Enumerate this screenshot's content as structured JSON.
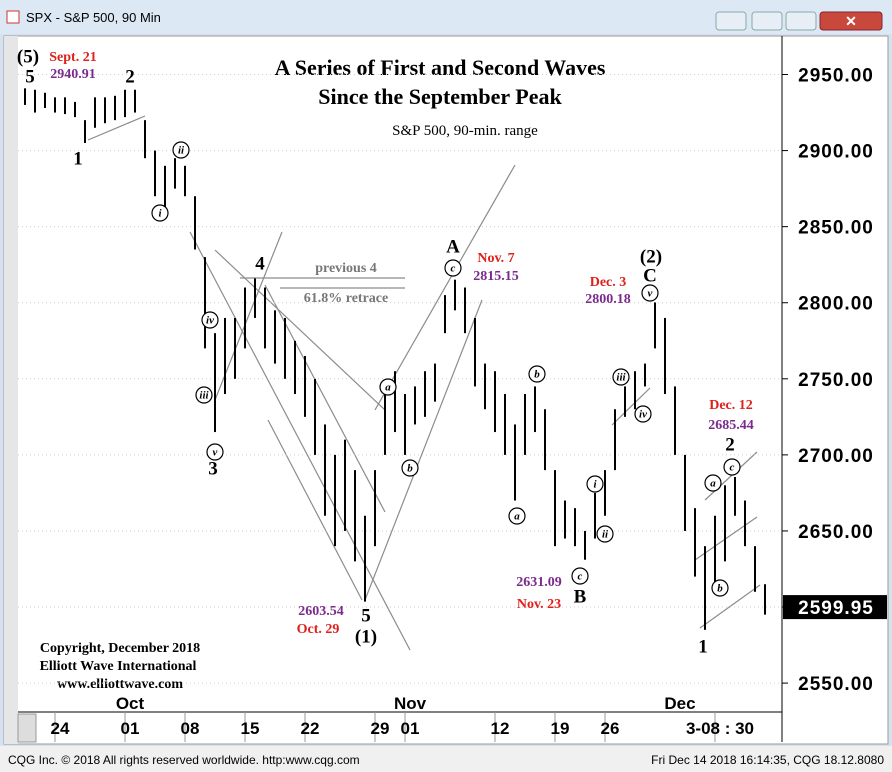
{
  "window": {
    "title": "SPX - S&P 500, 90 Min"
  },
  "status_bar": {
    "left": "CQG Inc. © 2018 All rights reserved worldwide. http:www.cqg.com",
    "right": "Fri Dec 14 2018 16:14:35, CQG 18.12.8080"
  },
  "chart_data": {
    "type": "range_bar",
    "title": [
      "A Series of First and Second Waves",
      "Since the September Peak"
    ],
    "subtitle": "S&P 500, 90-min. range",
    "categories": [
      null,
      null,
      null,
      "24",
      null,
      null,
      null,
      null,
      null,
      null,
      "01",
      null,
      null,
      null,
      null,
      null,
      "08",
      null,
      null,
      null,
      null,
      null,
      "15",
      null,
      null,
      null,
      null,
      null,
      "22",
      null,
      null,
      null,
      null,
      null,
      null,
      "29",
      null,
      null,
      "01",
      null,
      null,
      null,
      null,
      null,
      null,
      null,
      null,
      "12",
      null,
      null,
      null,
      null,
      null,
      "19",
      null,
      null,
      null,
      null,
      "26",
      null,
      null,
      null,
      null,
      null,
      null,
      null,
      null,
      null,
      null,
      "3-08 : 30",
      null,
      null,
      null,
      null,
      null
    ],
    "category_groups": [
      null,
      null,
      null,
      null,
      null,
      null,
      null,
      null,
      null,
      null,
      "Oct",
      null,
      null,
      null,
      null,
      null,
      null,
      null,
      null,
      null,
      null,
      null,
      null,
      null,
      null,
      null,
      null,
      null,
      null,
      null,
      null,
      null,
      null,
      null,
      null,
      null,
      null,
      null,
      "Nov",
      null,
      null,
      null,
      null,
      null,
      null,
      null,
      null,
      null,
      null,
      null,
      null,
      null,
      null,
      null,
      null,
      null,
      null,
      null,
      null,
      null,
      null,
      null,
      null,
      null,
      null,
      "Dec",
      null,
      null,
      null,
      null,
      null,
      null,
      null,
      null,
      null
    ],
    "low": [
      2930,
      2925,
      2928,
      2925,
      2924,
      2922,
      2905,
      2915,
      2918,
      2920,
      2922,
      2925,
      2895,
      2870,
      2860,
      2875,
      2870,
      2835,
      2770,
      2715,
      2740,
      2750,
      2770,
      2790,
      2770,
      2760,
      2750,
      2740,
      2725,
      2700,
      2660,
      2640,
      2650,
      2630,
      2603.54,
      2640,
      2700,
      2715,
      2700,
      2720,
      2725,
      2735,
      2780,
      2795,
      2780,
      2745,
      2730,
      2715,
      2700,
      2670,
      2700,
      2715,
      2690,
      2640,
      2645,
      2640,
      2631.09,
      2645,
      2660,
      2690,
      2725,
      2730,
      2745,
      2770,
      2740,
      2700,
      2650,
      2620,
      2585,
      2610,
      2630,
      2660,
      2640,
      2610,
      2595
    ],
    "high": [
      2940.91,
      2940,
      2938,
      2935,
      2935,
      2932,
      2920,
      2935,
      2935,
      2936,
      2940,
      2940,
      2920,
      2900,
      2890,
      2895,
      2890,
      2870,
      2830,
      2780,
      2790,
      2790,
      2810,
      2816,
      2810,
      2795,
      2790,
      2775,
      2765,
      2750,
      2720,
      2700,
      2710,
      2690,
      2660,
      2690,
      2745,
      2755,
      2740,
      2745,
      2755,
      2760,
      2805,
      2815.15,
      2810,
      2790,
      2760,
      2755,
      2740,
      2720,
      2740,
      2745,
      2730,
      2690,
      2670,
      2665,
      2650,
      2675,
      2690,
      2730,
      2745,
      2755,
      2760,
      2800.18,
      2790,
      2745,
      2700,
      2665,
      2640,
      2660,
      2680,
      2685.44,
      2670,
      2640,
      2615
    ],
    "color": "#000000",
    "ylim": [
      2531,
      2974
    ],
    "yticks": [
      {
        "value": 2550,
        "label": "2550.00"
      },
      {
        "value": 2600,
        "label": "2600.00"
      },
      {
        "value": 2650,
        "label": "2650.00"
      },
      {
        "value": 2700,
        "label": "2700.00"
      },
      {
        "value": 2750,
        "label": "2750.00"
      },
      {
        "value": 2800,
        "label": "2800.00"
      },
      {
        "value": 2850,
        "label": "2850.00"
      },
      {
        "value": 2900,
        "label": "2900.00"
      },
      {
        "value": 2950,
        "label": "2950.00"
      }
    ],
    "grid": true,
    "last_price": 2599.95,
    "wave_labels": [
      "(5)",
      "5",
      "1",
      "2",
      "3",
      "4",
      "5",
      "(1)",
      "A",
      "B",
      "(2)",
      "C",
      "1",
      "2"
    ],
    "circled_labels": [
      "i",
      "ii",
      "iii",
      "iv",
      "v",
      "a",
      "b",
      "c",
      "a",
      "b",
      "c",
      "i",
      "ii",
      "iii",
      "iv",
      "v",
      "a",
      "c",
      "b"
    ],
    "price_callouts": [
      {
        "date": "Sept. 21",
        "price": 2940.91
      },
      {
        "date": "Oct. 29",
        "price": 2603.54
      },
      {
        "date": "Nov. 7",
        "price": 2815.15
      },
      {
        "date": "Nov. 23",
        "price": 2631.09
      },
      {
        "date": "Dec. 3",
        "price": 2800.18
      },
      {
        "date": "Dec. 12",
        "price": 2685.44
      }
    ],
    "notes": [
      "previous 4",
      "61.8% retrace"
    ],
    "copyright": [
      "Copyright, December 2018",
      "Elliott Wave International",
      "www.elliottwave.com"
    ]
  }
}
